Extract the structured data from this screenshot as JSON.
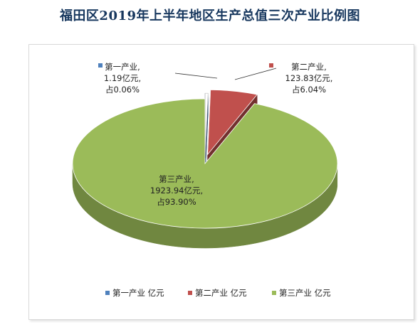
{
  "chart_data": {
    "type": "pie",
    "title": "福田区2019年上半年地区生产总值三次产业比例图",
    "unit": "亿元",
    "series": [
      {
        "name": "第一产业",
        "value": 1.19,
        "percent": 0.06,
        "label_lines": [
          "第一产业,",
          "1.19亿元,",
          "占0.06%"
        ],
        "legend": "第一产业 亿元",
        "color": "#4f81bd"
      },
      {
        "name": "第二产业",
        "value": 123.83,
        "percent": 6.04,
        "label_lines": [
          "第二产业,",
          "123.83亿元,",
          "占6.04%"
        ],
        "legend": "第二产业 亿元",
        "color": "#c0504d"
      },
      {
        "name": "第三产业",
        "value": 1923.94,
        "percent": 93.9,
        "label_lines": [
          "第三产业,",
          "1923.94亿元,",
          "占93.90%"
        ],
        "legend": "第三产业 亿元",
        "color": "#9bbb59"
      }
    ],
    "legend_position": "bottom"
  }
}
